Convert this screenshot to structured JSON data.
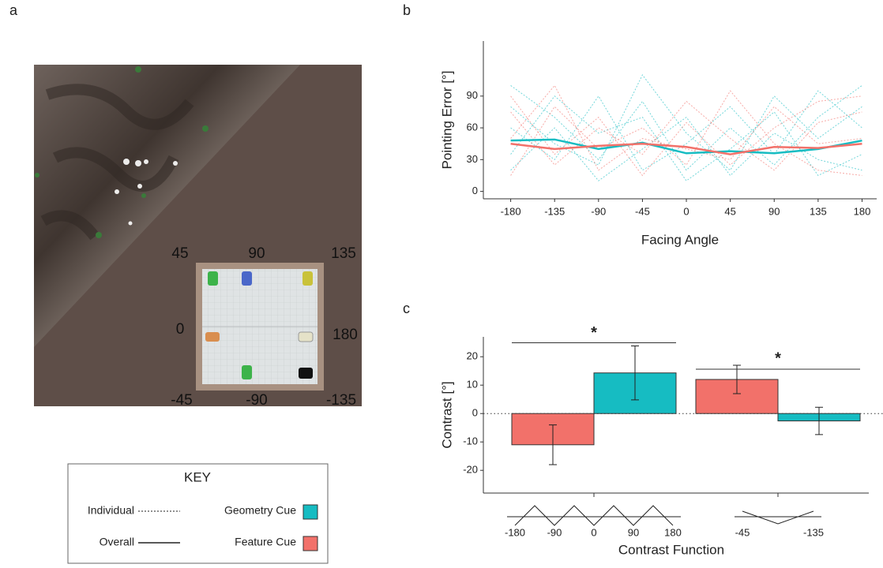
{
  "panel_labels": [
    "a",
    "b",
    "c"
  ],
  "arena": {
    "angle_labels": [
      45,
      90,
      135,
      0,
      180,
      -45,
      -90,
      -135
    ]
  },
  "key": {
    "title": "KEY",
    "individual": "Individual",
    "overall": "Overall"
  },
  "chart_data": [
    {
      "type": "line",
      "y_label": "Pointing Error [°]",
      "x_label": "Facing Angle",
      "x": [
        -180,
        -135,
        -90,
        -45,
        0,
        45,
        90,
        135,
        180
      ],
      "xlim": [
        -208,
        195
      ],
      "ylim": [
        -7,
        142
      ],
      "xticks": [
        -180,
        -135,
        -90,
        -45,
        0,
        45,
        90,
        135,
        180
      ],
      "yticks": [
        0,
        30,
        60,
        90
      ],
      "series": [
        {
          "name": "Geometry Cue",
          "color": "#16bcc2",
          "values": [
            48,
            49,
            40,
            46,
            36,
            38,
            36,
            40,
            48
          ]
        },
        {
          "name": "Feature Cue",
          "color": "#f2716a",
          "values": [
            45,
            40,
            43,
            45,
            42,
            35,
            42,
            41,
            45
          ]
        }
      ],
      "individual_series": [
        {
          "color": "#16bcc2",
          "values": [
            100,
            70,
            30,
            85,
            20,
            60,
            25,
            70,
            100
          ]
        },
        {
          "color": "#16bcc2",
          "values": [
            20,
            60,
            10,
            40,
            70,
            15,
            55,
            30,
            20
          ]
        },
        {
          "color": "#16bcc2",
          "values": [
            60,
            30,
            90,
            20,
            45,
            80,
            35,
            95,
            60
          ]
        },
        {
          "color": "#16bcc2",
          "values": [
            35,
            90,
            55,
            70,
            10,
            40,
            75,
            15,
            35
          ]
        },
        {
          "color": "#16bcc2",
          "values": [
            80,
            45,
            25,
            110,
            55,
            20,
            90,
            50,
            80
          ]
        },
        {
          "color": "#f2716a",
          "values": [
            75,
            25,
            60,
            35,
            85,
            50,
            20,
            65,
            75
          ]
        },
        {
          "color": "#f2716a",
          "values": [
            15,
            80,
            40,
            60,
            25,
            95,
            45,
            20,
            15
          ]
        },
        {
          "color": "#f2716a",
          "values": [
            50,
            100,
            20,
            50,
            40,
            30,
            80,
            45,
            50
          ]
        },
        {
          "color": "#f2716a",
          "values": [
            90,
            35,
            70,
            15,
            65,
            25,
            60,
            85,
            90
          ]
        }
      ]
    },
    {
      "type": "bar",
      "y_label": "Contrast [°]",
      "x_label": "Contrast Function",
      "category_ticks": [
        [
          "-180",
          "-90",
          "0",
          "90",
          "180"
        ],
        [
          "-45",
          "-135"
        ]
      ],
      "ylim": [
        -28,
        27
      ],
      "yticks": [
        -20,
        -10,
        0,
        10,
        20
      ],
      "series": [
        {
          "name": "Feature Cue",
          "color": "#f2716a",
          "values": [
            -11,
            12
          ],
          "errors": [
            7,
            5
          ]
        },
        {
          "name": "Geometry Cue",
          "color": "#16bcc2",
          "values": [
            14.3,
            -2.6
          ],
          "errors": [
            9.5,
            4.8
          ]
        }
      ],
      "significance": [
        "*",
        "*"
      ]
    }
  ]
}
